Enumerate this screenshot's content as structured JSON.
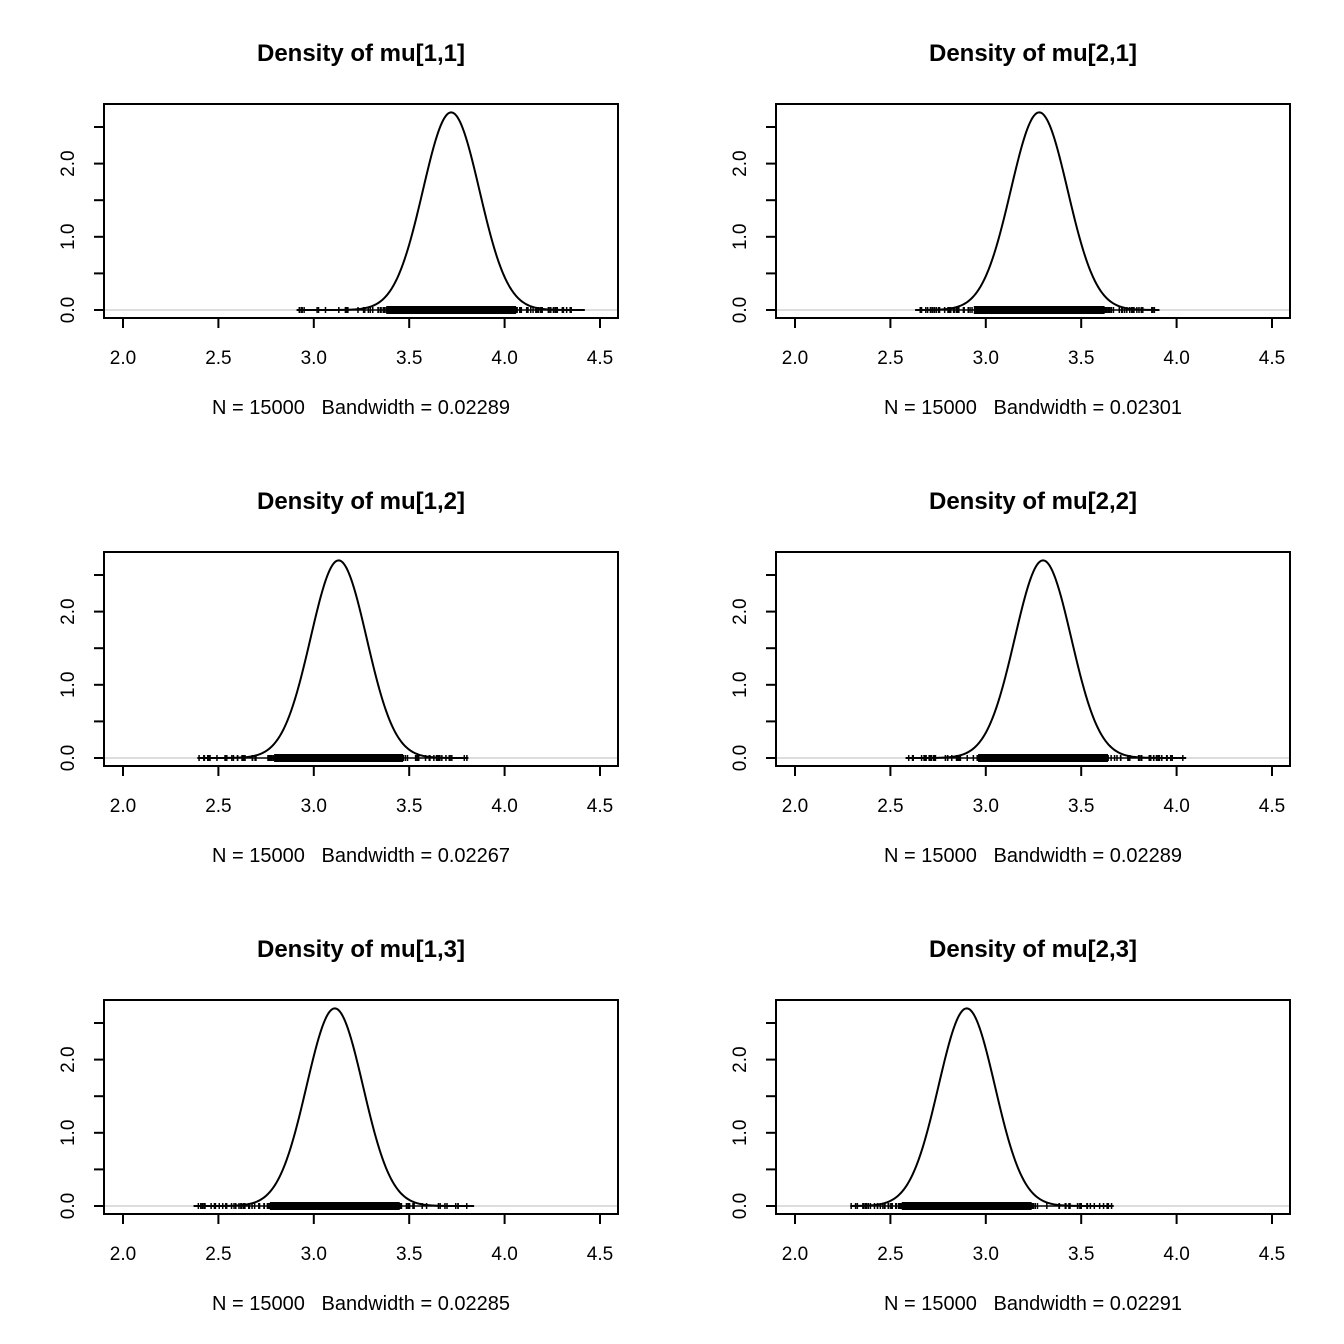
{
  "chart_data": [
    {
      "type": "line",
      "title": "Density of mu[1,1]",
      "xlabel": "N = 15000   Bandwidth = 0.02289",
      "ylabel": "",
      "xlim": [
        2.0,
        4.5
      ],
      "ylim": [
        0,
        2.7
      ],
      "xticks": [
        2.0,
        2.5,
        3.0,
        3.5,
        4.0,
        4.5
      ],
      "xtick_labels": [
        "2.0",
        "2.5",
        "3.0",
        "3.5",
        "4.0",
        "4.5"
      ],
      "yticks": [
        0,
        0.5,
        1.0,
        1.5,
        2.0,
        2.5
      ],
      "ytick_labels": [
        "0.0",
        "",
        "1.0",
        "",
        "2.0",
        ""
      ],
      "mean": 3.72,
      "sd": 0.148,
      "peak": 2.7,
      "rug_range": [
        2.91,
        4.42
      ]
    },
    {
      "type": "line",
      "title": "Density of mu[2,1]",
      "xlabel": "N = 15000   Bandwidth = 0.02301",
      "ylabel": "",
      "xlim": [
        2.0,
        4.5
      ],
      "ylim": [
        0,
        2.7
      ],
      "xticks": [
        2.0,
        2.5,
        3.0,
        3.5,
        4.0,
        4.5
      ],
      "xtick_labels": [
        "2.0",
        "2.5",
        "3.0",
        "3.5",
        "4.0",
        "4.5"
      ],
      "yticks": [
        0,
        0.5,
        1.0,
        1.5,
        2.0,
        2.5
      ],
      "ytick_labels": [
        "0.0",
        "",
        "1.0",
        "",
        "2.0",
        ""
      ],
      "mean": 3.28,
      "sd": 0.149,
      "peak": 2.7,
      "rug_range": [
        2.63,
        3.91
      ]
    },
    {
      "type": "line",
      "title": "Density of mu[1,2]",
      "xlabel": "N = 15000   Bandwidth = 0.02267",
      "ylabel": "",
      "xlim": [
        2.0,
        4.5
      ],
      "ylim": [
        0,
        2.7
      ],
      "xticks": [
        2.0,
        2.5,
        3.0,
        3.5,
        4.0,
        4.5
      ],
      "xtick_labels": [
        "2.0",
        "2.5",
        "3.0",
        "3.5",
        "4.0",
        "4.5"
      ],
      "yticks": [
        0,
        0.5,
        1.0,
        1.5,
        2.0,
        2.5
      ],
      "ytick_labels": [
        "0.0",
        "",
        "1.0",
        "",
        "2.0",
        ""
      ],
      "mean": 3.13,
      "sd": 0.147,
      "peak": 2.7,
      "rug_range": [
        2.39,
        3.81
      ]
    },
    {
      "type": "line",
      "title": "Density of mu[2,2]",
      "xlabel": "N = 15000   Bandwidth = 0.02289",
      "ylabel": "",
      "xlim": [
        2.0,
        4.5
      ],
      "ylim": [
        0,
        2.7
      ],
      "xticks": [
        2.0,
        2.5,
        3.0,
        3.5,
        4.0,
        4.5
      ],
      "xtick_labels": [
        "2.0",
        "2.5",
        "3.0",
        "3.5",
        "4.0",
        "4.5"
      ],
      "yticks": [
        0,
        0.5,
        1.0,
        1.5,
        2.0,
        2.5
      ],
      "ytick_labels": [
        "0.0",
        "",
        "1.0",
        "",
        "2.0",
        ""
      ],
      "mean": 3.3,
      "sd": 0.148,
      "peak": 2.7,
      "rug_range": [
        2.58,
        4.05
      ]
    },
    {
      "type": "line",
      "title": "Density of mu[1,3]",
      "xlabel": "N = 15000   Bandwidth = 0.02285",
      "ylabel": "",
      "xlim": [
        2.0,
        4.5
      ],
      "ylim": [
        0,
        2.7
      ],
      "xticks": [
        2.0,
        2.5,
        3.0,
        3.5,
        4.0,
        4.5
      ],
      "xtick_labels": [
        "2.0",
        "2.5",
        "3.0",
        "3.5",
        "4.0",
        "4.5"
      ],
      "yticks": [
        0,
        0.5,
        1.0,
        1.5,
        2.0,
        2.5
      ],
      "ytick_labels": [
        "0.0",
        "",
        "1.0",
        "",
        "2.0",
        ""
      ],
      "mean": 3.11,
      "sd": 0.148,
      "peak": 2.7,
      "rug_range": [
        2.37,
        3.84
      ]
    },
    {
      "type": "line",
      "title": "Density of mu[2,3]",
      "xlabel": "N = 15000   Bandwidth = 0.02291",
      "ylabel": "",
      "xlim": [
        2.0,
        4.5
      ],
      "ylim": [
        0,
        2.7
      ],
      "xticks": [
        2.0,
        2.5,
        3.0,
        3.5,
        4.0,
        4.5
      ],
      "xtick_labels": [
        "2.0",
        "2.5",
        "3.0",
        "3.5",
        "4.0",
        "4.5"
      ],
      "yticks": [
        0,
        0.5,
        1.0,
        1.5,
        2.0,
        2.5
      ],
      "ytick_labels": [
        "0.0",
        "",
        "1.0",
        "",
        "2.0",
        ""
      ],
      "mean": 2.9,
      "sd": 0.148,
      "peak": 2.7,
      "rug_range": [
        2.29,
        3.67
      ]
    }
  ]
}
